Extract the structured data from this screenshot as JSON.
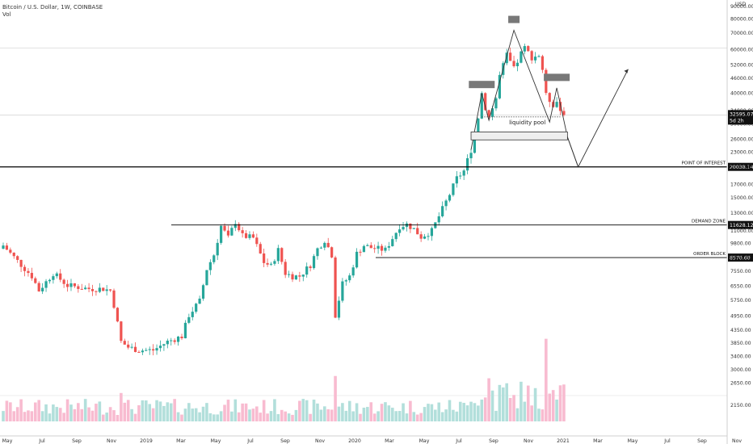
{
  "header": {
    "symbol_line": "Bitcoin / U.S. Dollar, 1W, COINBASE",
    "indicator": "Vol"
  },
  "colors": {
    "up": "#26a69a",
    "down": "#ef5350",
    "vol_up": "#b2dfdb",
    "vol_down": "#f8bbd0",
    "line": "#000000",
    "grid": "#e6e6e6",
    "marker": "#787878"
  },
  "chart_data": {
    "type": "candlestick",
    "title": "Bitcoin / U.S. Dollar, 1W, COINBASE",
    "currency": "USD",
    "y_scale": "log",
    "ylim": [
      2150,
      90000
    ],
    "y_ticks": [
      90000,
      80000,
      70000,
      60000,
      52000,
      46000,
      40000,
      34000,
      30000,
      26000,
      23000,
      20000,
      17000,
      15000,
      13000,
      11000,
      9800,
      8600,
      7550,
      6550,
      5750,
      4950,
      4350,
      3850,
      3400,
      3000,
      2650,
      2150
    ],
    "x_labels": [
      "May",
      "Jul",
      "Sep",
      "Nov",
      "2019",
      "Mar",
      "May",
      "Jul",
      "Sep",
      "Nov",
      "2020",
      "Mar",
      "May",
      "Jul",
      "Sep",
      "Nov",
      "2021",
      "Mar",
      "May",
      "Jul",
      "Sep",
      "Nov"
    ],
    "last_price": "32595.07",
    "countdown": "5d 2h",
    "levels": [
      {
        "label": "POINT OF INTEREST",
        "value": 20038.14,
        "value_text": "20038.14"
      },
      {
        "label": "DEMAND ZONE",
        "value": 11628.12,
        "value_text": "11628.12"
      },
      {
        "label": "ORDER BLOCK",
        "value": 8570.6,
        "value_text": "8570.60"
      }
    ],
    "annotations": [
      {
        "text": "liquidity pool"
      }
    ],
    "weekly_close_path": [
      {
        "week": 0,
        "close": 9600
      },
      {
        "week": 4,
        "close": 8300
      },
      {
        "week": 8,
        "close": 7200
      },
      {
        "week": 10,
        "close": 6300
      },
      {
        "week": 14,
        "close": 7400
      },
      {
        "week": 18,
        "close": 6600
      },
      {
        "week": 24,
        "close": 6400
      },
      {
        "week": 28,
        "close": 6400
      },
      {
        "week": 30,
        "close": 6300
      },
      {
        "week": 31,
        "close": 5500
      },
      {
        "week": 33,
        "close": 3900
      },
      {
        "week": 35,
        "close": 3700
      },
      {
        "week": 38,
        "close": 3600
      },
      {
        "week": 42,
        "close": 3600
      },
      {
        "week": 46,
        "close": 3900
      },
      {
        "week": 50,
        "close": 4100
      },
      {
        "week": 52,
        "close": 5000
      },
      {
        "week": 55,
        "close": 5700
      },
      {
        "week": 57,
        "close": 7700
      },
      {
        "week": 59,
        "close": 8800
      },
      {
        "week": 61,
        "close": 11500
      },
      {
        "week": 63,
        "close": 10300
      },
      {
        "week": 65,
        "close": 12000
      },
      {
        "week": 67,
        "close": 10500
      },
      {
        "week": 70,
        "close": 10300
      },
      {
        "week": 73,
        "close": 8200
      },
      {
        "week": 75,
        "close": 7900
      },
      {
        "week": 77,
        "close": 9200
      },
      {
        "week": 79,
        "close": 7400
      },
      {
        "week": 81,
        "close": 7200
      },
      {
        "week": 83,
        "close": 7200
      },
      {
        "week": 86,
        "close": 8000
      },
      {
        "week": 88,
        "close": 9300
      },
      {
        "week": 90,
        "close": 10100
      },
      {
        "week": 92,
        "close": 8800
      },
      {
        "week": 93,
        "close": 5000
      },
      {
        "week": 95,
        "close": 6700
      },
      {
        "week": 97,
        "close": 7200
      },
      {
        "week": 99,
        "close": 8900
      },
      {
        "week": 101,
        "close": 9600
      },
      {
        "week": 103,
        "close": 9400
      },
      {
        "week": 107,
        "close": 9200
      },
      {
        "week": 111,
        "close": 11500
      },
      {
        "week": 113,
        "close": 11700
      },
      {
        "week": 115,
        "close": 11200
      },
      {
        "week": 117,
        "close": 10400
      },
      {
        "week": 120,
        "close": 11000
      },
      {
        "week": 123,
        "close": 13500
      },
      {
        "week": 125,
        "close": 15500
      },
      {
        "week": 127,
        "close": 18000
      },
      {
        "week": 129,
        "close": 19300
      },
      {
        "week": 131,
        "close": 23500
      },
      {
        "week": 133,
        "close": 32000
      },
      {
        "week": 134,
        "close": 40000
      },
      {
        "week": 135,
        "close": 35000
      },
      {
        "week": 136,
        "close": 32000
      },
      {
        "week": 138,
        "close": 38000
      },
      {
        "week": 139,
        "close": 47000
      },
      {
        "week": 141,
        "close": 57000
      },
      {
        "week": 143,
        "close": 50000
      },
      {
        "week": 145,
        "close": 58000
      },
      {
        "week": 146,
        "close": 61000
      },
      {
        "week": 148,
        "close": 56000
      },
      {
        "week": 150,
        "close": 57000
      },
      {
        "week": 151,
        "close": 50000
      },
      {
        "week": 152,
        "close": 39000
      },
      {
        "week": 154,
        "close": 36000
      },
      {
        "week": 155,
        "close": 37000
      },
      {
        "week": 156,
        "close": 34000
      },
      {
        "week": 157,
        "close": 32595
      }
    ],
    "projection": [
      {
        "week": 158,
        "price": 26500
      },
      {
        "week": 161,
        "price": 20038
      },
      {
        "week": 175,
        "price": 50000
      }
    ]
  }
}
